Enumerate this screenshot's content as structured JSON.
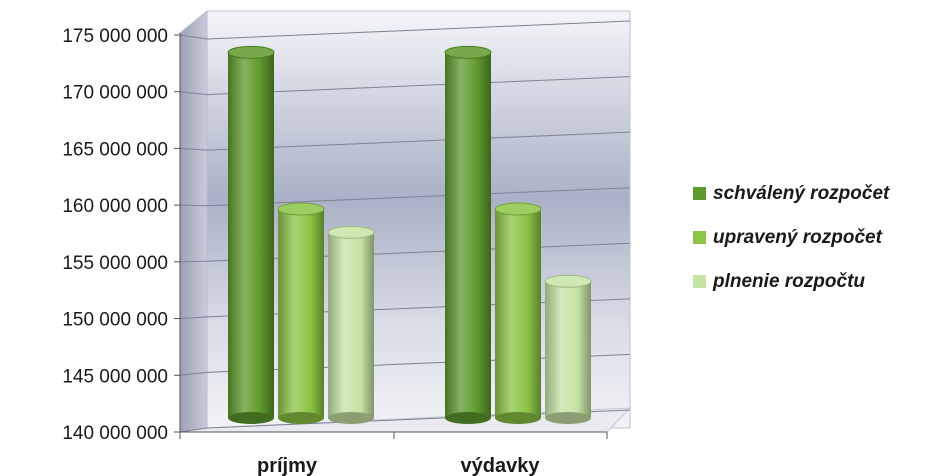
{
  "chart_data": {
    "type": "bar",
    "categories": [
      "príjmy",
      "výdavky"
    ],
    "series": [
      {
        "name": "schválený rozpočet",
        "values": [
          173800000,
          173800000
        ],
        "color": "#5e9a2c"
      },
      {
        "name": "upravený rozpočet",
        "values": [
          159700000,
          159700000
        ],
        "color": "#8cc445"
      },
      {
        "name": "plnenie rozpočtu",
        "values": [
          157600000,
          153200000
        ],
        "color": "#c6e3a4"
      }
    ],
    "y_tick_labels": [
      "140 000 000",
      "145 000 000",
      "150 000 000",
      "155 000 000",
      "160 000 000",
      "165 000 000",
      "170 000 000",
      "175 000 000"
    ],
    "y_ticks": [
      140000000,
      145000000,
      150000000,
      155000000,
      160000000,
      165000000,
      170000000,
      175000000
    ],
    "ylim": [
      140000000,
      175000000
    ],
    "grid": true,
    "legend_position": "right",
    "style": "3d-cylinder"
  }
}
